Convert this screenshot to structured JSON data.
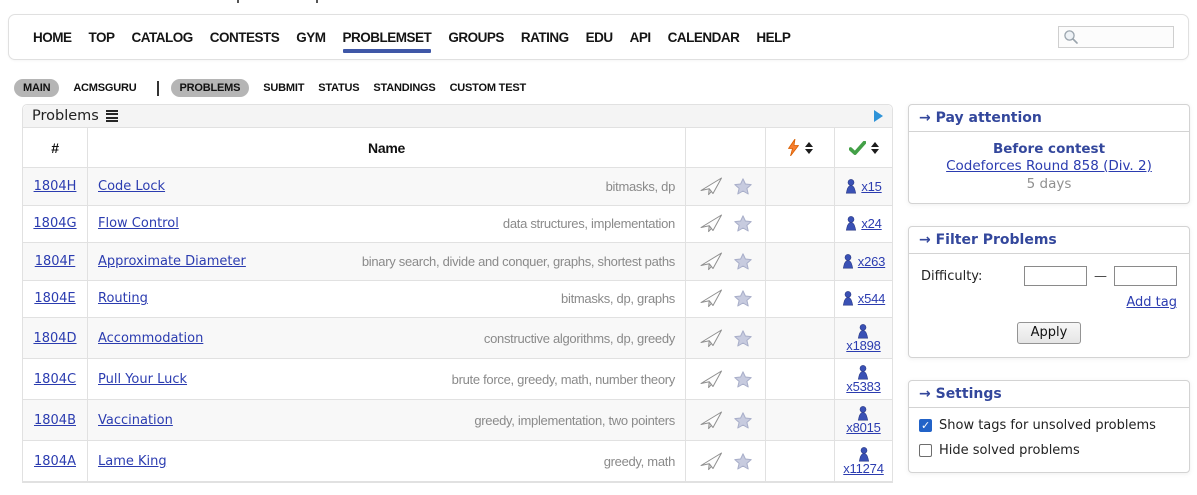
{
  "topnav": {
    "items": [
      "HOME",
      "TOP",
      "CATALOG",
      "CONTESTS",
      "GYM",
      "PROBLEMSET",
      "GROUPS",
      "RATING",
      "EDU",
      "API",
      "CALENDAR",
      "HELP"
    ],
    "active": "PROBLEMSET"
  },
  "search": {
    "value": "",
    "placeholder": ""
  },
  "subnav": {
    "items": [
      {
        "label": "MAIN",
        "type": "pill"
      },
      {
        "label": "ACMSGURU",
        "type": "plain"
      },
      {
        "label": "",
        "type": "divider"
      },
      {
        "label": "PROBLEMS",
        "type": "pill"
      },
      {
        "label": "SUBMIT",
        "type": "plain"
      },
      {
        "label": "STATUS",
        "type": "plain"
      },
      {
        "label": "STANDINGS",
        "type": "plain"
      },
      {
        "label": "CUSTOM TEST",
        "type": "plain"
      }
    ]
  },
  "problems": {
    "caption": "Problems",
    "header": {
      "number": "#",
      "name": "Name"
    },
    "rows": [
      {
        "id": "1804H",
        "name": "Code Lock",
        "tags": "bitmasks, dp",
        "solved": "x15"
      },
      {
        "id": "1804G",
        "name": "Flow Control",
        "tags": "data structures, implementation",
        "solved": "x24"
      },
      {
        "id": "1804F",
        "name": "Approximate Diameter",
        "tags": "binary search, divide and conquer, graphs, shortest paths",
        "solved": "x263"
      },
      {
        "id": "1804E",
        "name": "Routing",
        "tags": "bitmasks, dp, graphs",
        "solved": "x544"
      },
      {
        "id": "1804D",
        "name": "Accommodation",
        "tags": "constructive algorithms, dp, greedy",
        "solved": "x1898"
      },
      {
        "id": "1804C",
        "name": "Pull Your Luck",
        "tags": "brute force, greedy, math, number theory",
        "solved": "x5383"
      },
      {
        "id": "1804B",
        "name": "Vaccination",
        "tags": "greedy, implementation, two pointers",
        "solved": "x8015"
      },
      {
        "id": "1804A",
        "name": "Lame King",
        "tags": "greedy, math",
        "solved": "x11274"
      }
    ]
  },
  "sidebar": {
    "pay_attention": {
      "title": "→ Pay attention",
      "subtitle": "Before contest",
      "contest_link": "Codeforces Round 858 (Div. 2)",
      "countdown": "5 days"
    },
    "filter": {
      "title": "→ Filter Problems",
      "difficulty_label": "Difficulty:",
      "range_separator": "—",
      "min_value": "",
      "max_value": "",
      "add_tag_label": "Add tag",
      "apply_label": "Apply"
    },
    "settings": {
      "title": "→ Settings",
      "options": [
        {
          "label": "Show tags for unsolved problems",
          "checked": true
        },
        {
          "label": "Hide solved problems",
          "checked": false
        }
      ]
    }
  },
  "icons": {
    "search": "magnifier-icon",
    "caption_menu": "list-icon",
    "caption_expand": "play-icon",
    "difficulty_sort": "lightning-icon",
    "solved_sort": "check-icon",
    "row_clarification": "paper-plane-icon",
    "row_favorite": "star-icon",
    "solved_by": "person-icon"
  },
  "colors": {
    "heading_navy": "#33479c",
    "link_blue": "#2b3cb0",
    "nav_underline": "#3f57a7",
    "pill_gray": "#b5b5b5",
    "tag_gray": "#8a8a8a",
    "check_green": "#43a047",
    "lightning_orange": "#f87f2f",
    "person_blue": "#3a51b5",
    "checkbox_blue": "#2263c8",
    "border_gray": "#e1e1e1"
  }
}
